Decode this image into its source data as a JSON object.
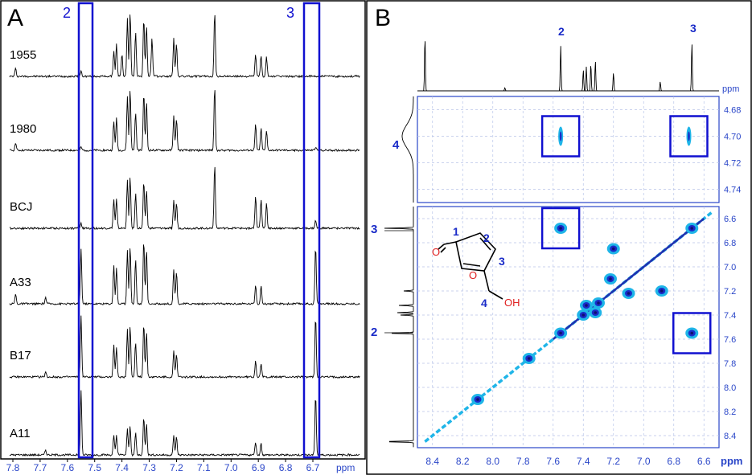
{
  "colors": {
    "frame": "#000000",
    "highlight": "#1010d0",
    "axis_text": "#2a46c8",
    "cross_peak": "#1fb5e8",
    "cross_peak_core": "#101070",
    "molecule_o": "#e02020",
    "molecule_bond": "#000000"
  },
  "panel_a": {
    "letter": "A",
    "box_labels": [
      "2",
      "3"
    ],
    "xunit": "ppm",
    "xticks": [
      "7.8",
      "7.7",
      "7.6",
      "7.5",
      "7.4",
      "7.3",
      "7.2",
      "7.1",
      "7.0",
      "6.9",
      "6.8",
      "6.7"
    ],
    "samples": [
      "1955",
      "1980",
      "BCJ",
      "A33",
      "B17",
      "A11"
    ]
  },
  "panel_b": {
    "letter": "B",
    "top_peak_labels": [
      "2",
      "3"
    ],
    "left_peak_labels": [
      "4",
      "3",
      "2"
    ],
    "upper_yunit": "ppm",
    "upper_yticks": [
      "4.68",
      "4.70",
      "4.72",
      "4.74"
    ],
    "lower_yticks": [
      "6.6",
      "6.8",
      "7.0",
      "7.2",
      "7.4",
      "7.6",
      "7.8",
      "8.0",
      "8.2",
      "8.4"
    ],
    "xticks": [
      "8.4",
      "8.2",
      "8.0",
      "7.8",
      "7.6",
      "7.4",
      "7.2",
      "7.0",
      "6.8",
      "6.6"
    ],
    "xunit": "ppm",
    "molecule_labels": [
      "1",
      "2",
      "3",
      "4"
    ],
    "molecule_atoms": [
      "O",
      "O",
      "OH"
    ]
  },
  "chart_data": [
    {
      "type": "line",
      "panel": "A",
      "xlabel": "ppm",
      "xlim": [
        7.85,
        6.6
      ],
      "x_reversed": true,
      "series": [
        {
          "name": "1955",
          "peaks": [
            [
              7.79,
              0.12
            ],
            [
              7.55,
              0.08
            ],
            [
              7.43,
              0.4
            ],
            [
              7.42,
              0.5
            ],
            [
              7.4,
              0.35
            ],
            [
              7.38,
              0.9
            ],
            [
              7.37,
              1.0
            ],
            [
              7.35,
              0.7
            ],
            [
              7.32,
              0.9
            ],
            [
              7.31,
              0.8
            ],
            [
              7.29,
              0.6
            ],
            [
              7.21,
              0.6
            ],
            [
              7.2,
              0.5
            ],
            [
              7.06,
              1.0
            ],
            [
              6.91,
              0.35
            ],
            [
              6.89,
              0.32
            ],
            [
              6.87,
              0.3
            ]
          ]
        },
        {
          "name": "1980",
          "peaks": [
            [
              7.79,
              0.12
            ],
            [
              7.55,
              0.05
            ],
            [
              7.43,
              0.45
            ],
            [
              7.42,
              0.5
            ],
            [
              7.38,
              0.85
            ],
            [
              7.37,
              0.95
            ],
            [
              7.35,
              0.6
            ],
            [
              7.32,
              0.9
            ],
            [
              7.31,
              0.75
            ],
            [
              7.21,
              0.55
            ],
            [
              7.2,
              0.5
            ],
            [
              7.06,
              1.0
            ],
            [
              6.91,
              0.4
            ],
            [
              6.89,
              0.35
            ],
            [
              6.87,
              0.3
            ],
            [
              6.69,
              0.05
            ]
          ]
        },
        {
          "name": "BCJ",
          "peaks": [
            [
              7.55,
              0.08
            ],
            [
              7.43,
              0.45
            ],
            [
              7.42,
              0.45
            ],
            [
              7.38,
              0.75
            ],
            [
              7.37,
              0.8
            ],
            [
              7.35,
              0.55
            ],
            [
              7.32,
              0.75
            ],
            [
              7.31,
              0.6
            ],
            [
              7.21,
              0.45
            ],
            [
              7.2,
              0.4
            ],
            [
              7.06,
              1.0
            ],
            [
              6.91,
              0.5
            ],
            [
              6.89,
              0.45
            ],
            [
              6.87,
              0.4
            ],
            [
              6.69,
              0.12
            ]
          ]
        },
        {
          "name": "A33",
          "peaks": [
            [
              7.79,
              0.15
            ],
            [
              7.68,
              0.1
            ],
            [
              7.55,
              0.85
            ],
            [
              7.43,
              0.6
            ],
            [
              7.42,
              0.55
            ],
            [
              7.38,
              0.85
            ],
            [
              7.37,
              0.9
            ],
            [
              7.35,
              0.7
            ],
            [
              7.32,
              1.0
            ],
            [
              7.31,
              0.85
            ],
            [
              7.21,
              0.55
            ],
            [
              7.2,
              0.5
            ],
            [
              6.91,
              0.3
            ],
            [
              6.89,
              0.28
            ],
            [
              6.69,
              0.9
            ]
          ]
        },
        {
          "name": "B17",
          "peaks": [
            [
              7.68,
              0.08
            ],
            [
              7.55,
              0.95
            ],
            [
              7.43,
              0.5
            ],
            [
              7.42,
              0.45
            ],
            [
              7.38,
              0.75
            ],
            [
              7.37,
              0.8
            ],
            [
              7.35,
              0.55
            ],
            [
              7.32,
              0.85
            ],
            [
              7.31,
              0.7
            ],
            [
              7.21,
              0.4
            ],
            [
              7.2,
              0.35
            ],
            [
              6.91,
              0.25
            ],
            [
              6.89,
              0.2
            ],
            [
              6.69,
              0.95
            ]
          ]
        },
        {
          "name": "A11",
          "peaks": [
            [
              7.68,
              0.08
            ],
            [
              7.55,
              1.0
            ],
            [
              7.43,
              0.3
            ],
            [
              7.42,
              0.3
            ],
            [
              7.38,
              0.4
            ],
            [
              7.37,
              0.45
            ],
            [
              7.35,
              0.35
            ],
            [
              7.32,
              0.6
            ],
            [
              7.31,
              0.5
            ],
            [
              7.21,
              0.3
            ],
            [
              7.2,
              0.28
            ],
            [
              6.91,
              0.2
            ],
            [
              6.89,
              0.18
            ],
            [
              6.69,
              0.95
            ]
          ]
        }
      ]
    },
    {
      "type": "scatter",
      "panel": "B",
      "xlabel": "ppm",
      "xlim": [
        8.5,
        6.5
      ],
      "ylim_lower": [
        6.5,
        8.5
      ],
      "ylim_upper": [
        4.67,
        4.75
      ],
      "grid": true,
      "diagonal": [
        [
          8.45,
          8.45
        ],
        [
          6.55,
          6.55
        ]
      ],
      "cross_peaks": [
        {
          "x": 7.55,
          "y": 6.68
        },
        {
          "x": 6.68,
          "y": 7.55
        },
        {
          "x": 7.2,
          "y": 6.85
        },
        {
          "x": 6.88,
          "y": 7.2
        },
        {
          "x": 7.38,
          "y": 7.32
        },
        {
          "x": 7.32,
          "y": 7.38
        },
        {
          "x": 7.4,
          "y": 7.4
        },
        {
          "x": 7.3,
          "y": 7.3
        },
        {
          "x": 7.55,
          "y": 7.55
        },
        {
          "x": 6.68,
          "y": 6.68
        },
        {
          "x": 8.1,
          "y": 8.1
        },
        {
          "x": 7.76,
          "y": 7.76
        },
        {
          "x": 7.1,
          "y": 7.22
        },
        {
          "x": 7.22,
          "y": 7.1
        }
      ],
      "upper_peaks": [
        {
          "x": 7.55,
          "y": 4.7
        },
        {
          "x": 6.7,
          "y": 4.7
        }
      ],
      "highlight_boxes": [
        {
          "region": "upper",
          "x": 7.55,
          "y": 4.7
        },
        {
          "region": "upper",
          "x": 6.7,
          "y": 4.7
        },
        {
          "region": "lower",
          "x": 7.55,
          "y": 6.68
        },
        {
          "region": "lower",
          "x": 6.68,
          "y": 7.55
        }
      ]
    }
  ]
}
